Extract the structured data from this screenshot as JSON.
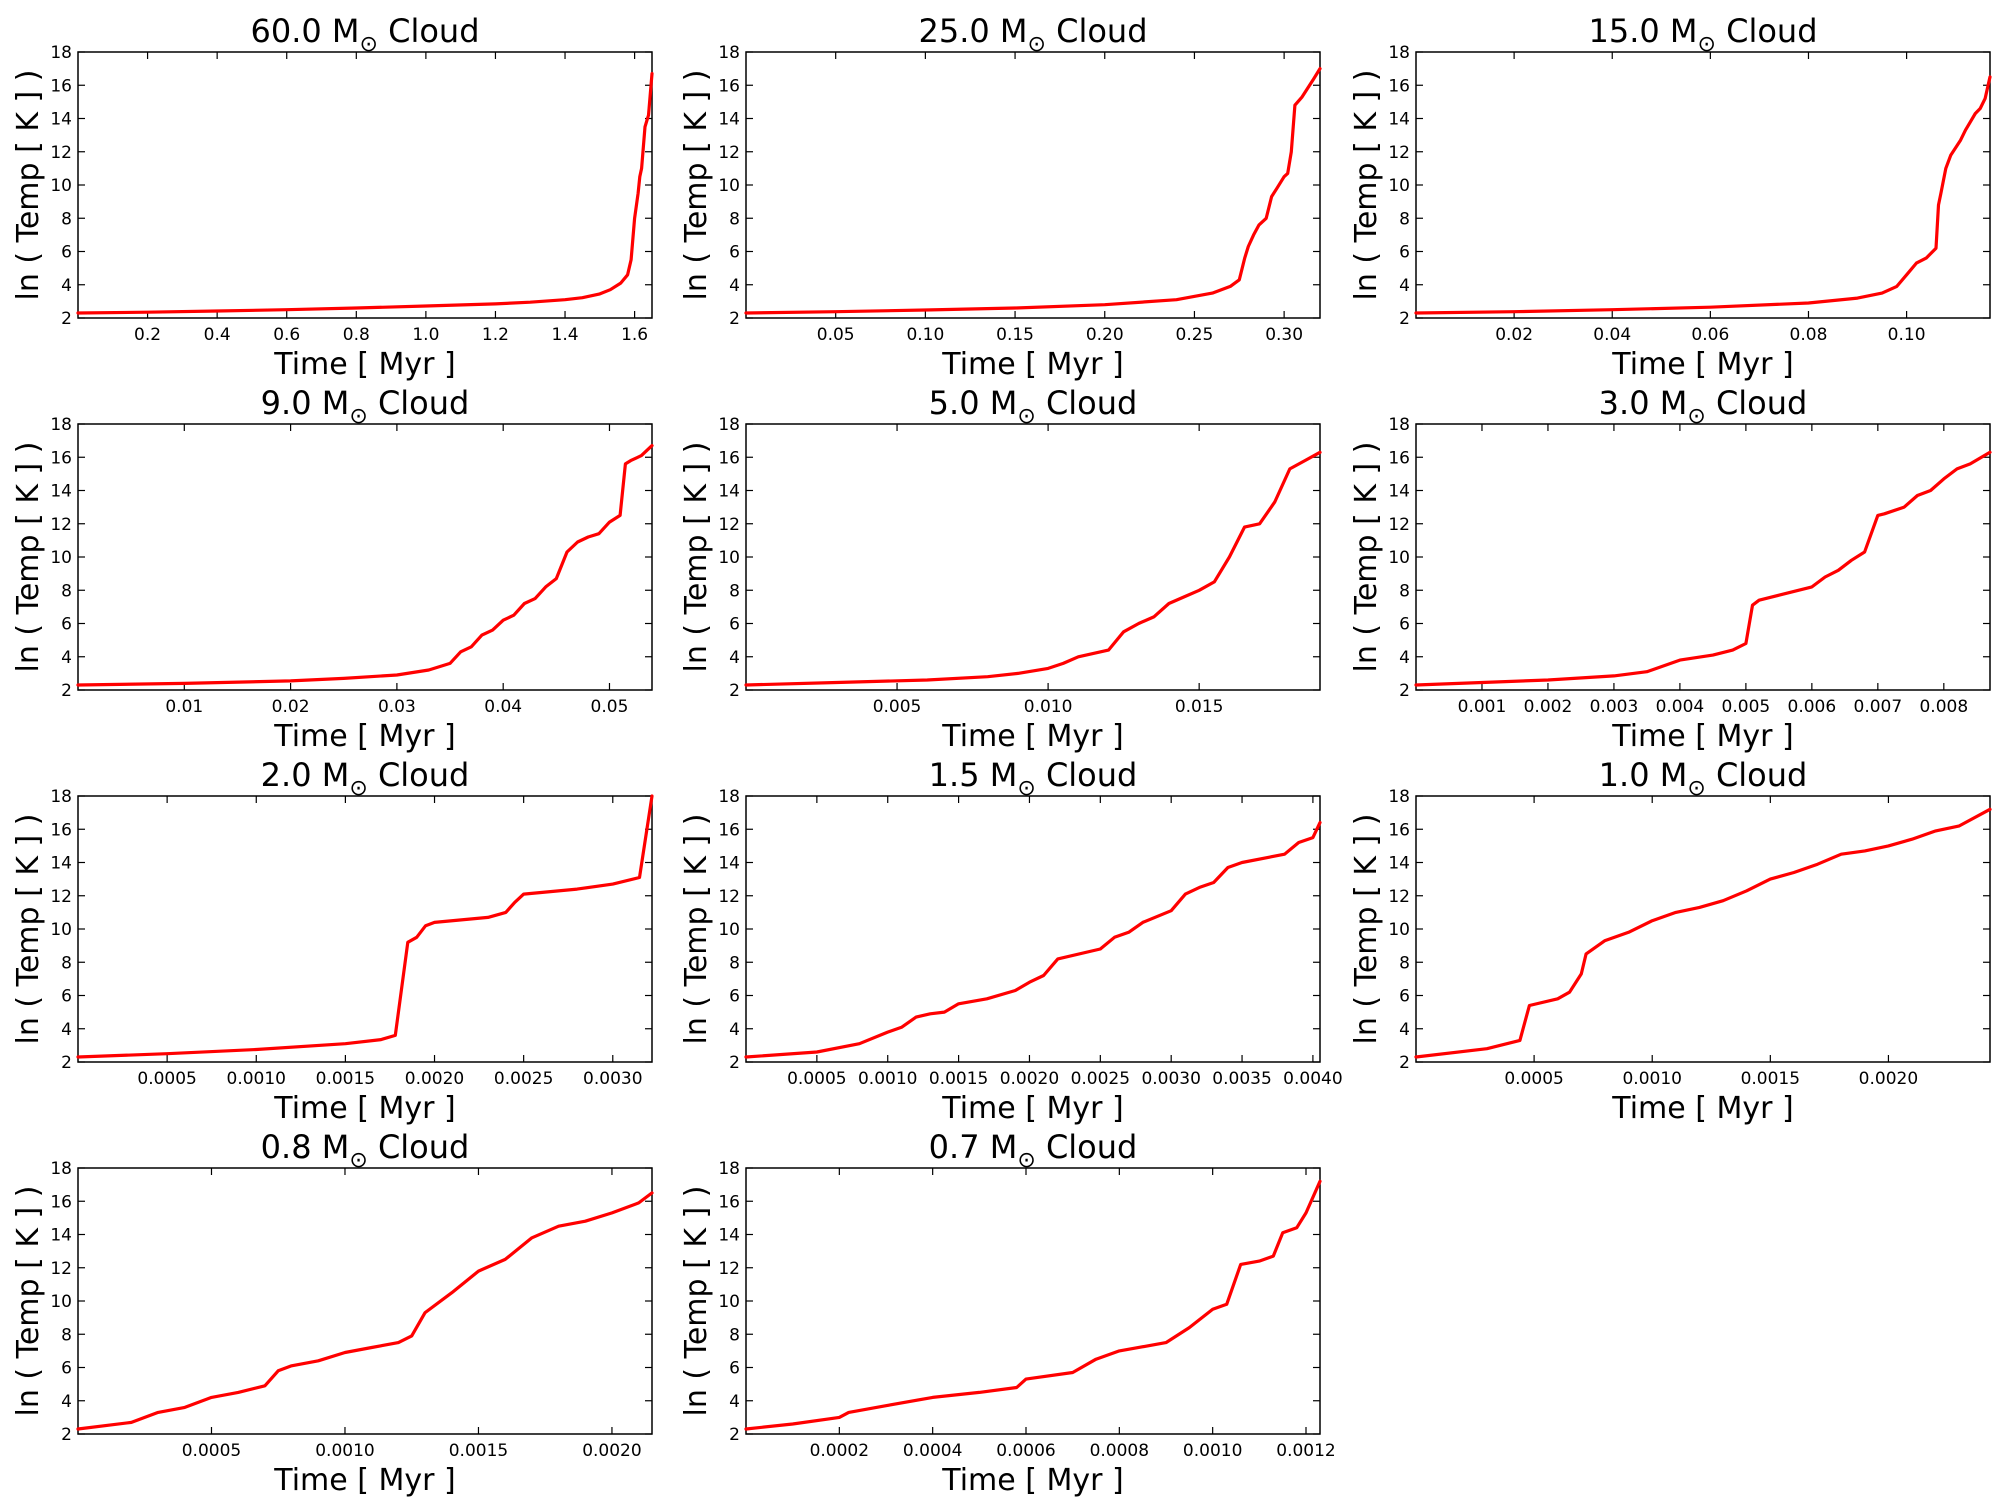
{
  "figure": {
    "line_color": "#ff0000",
    "xlabel": "Time [ Myr ]",
    "ylabel": "ln ( Temp [ K ] )",
    "cloud_word": "Cloud",
    "mass_unit": "M",
    "sun_symbol": "⊙"
  },
  "chart_data": [
    {
      "type": "line",
      "mass": "60.0",
      "xlim": [
        0.0,
        1.65
      ],
      "ylim": [
        2,
        18
      ],
      "xticks": [
        "0.2",
        "0.4",
        "0.6",
        "0.8",
        "1.0",
        "1.2",
        "1.4",
        "1.6"
      ],
      "yticks": [
        "2",
        "4",
        "6",
        "8",
        "10",
        "12",
        "14",
        "16",
        "18"
      ],
      "x": [
        0.0,
        0.2,
        0.4,
        0.6,
        0.8,
        1.0,
        1.2,
        1.3,
        1.4,
        1.45,
        1.5,
        1.53,
        1.56,
        1.58,
        1.59,
        1.6,
        1.61,
        1.615,
        1.62,
        1.63,
        1.64,
        1.65
      ],
      "y": [
        2.3,
        2.35,
        2.42,
        2.5,
        2.6,
        2.72,
        2.85,
        2.95,
        3.1,
        3.22,
        3.45,
        3.7,
        4.1,
        4.6,
        5.5,
        8.0,
        9.5,
        10.5,
        11.0,
        13.5,
        14.2,
        16.7
      ]
    },
    {
      "type": "line",
      "mass": "25.0",
      "xlim": [
        0.0,
        0.32
      ],
      "ylim": [
        2,
        18
      ],
      "xticks": [
        "0.05",
        "0.10",
        "0.15",
        "0.20",
        "0.25",
        "0.30"
      ],
      "yticks": [
        "2",
        "4",
        "6",
        "8",
        "10",
        "12",
        "14",
        "16",
        "18"
      ],
      "x": [
        0.0,
        0.05,
        0.1,
        0.15,
        0.2,
        0.24,
        0.26,
        0.27,
        0.275,
        0.278,
        0.28,
        0.283,
        0.286,
        0.29,
        0.293,
        0.296,
        0.3,
        0.302,
        0.304,
        0.306,
        0.31,
        0.313,
        0.316,
        0.32
      ],
      "y": [
        2.3,
        2.38,
        2.48,
        2.6,
        2.8,
        3.1,
        3.5,
        3.9,
        4.3,
        5.6,
        6.3,
        7.0,
        7.6,
        8.0,
        9.3,
        9.8,
        10.5,
        10.7,
        12.0,
        14.8,
        15.3,
        15.8,
        16.3,
        17.0
      ]
    },
    {
      "type": "line",
      "mass": "15.0",
      "xlim": [
        0.0,
        0.117
      ],
      "ylim": [
        2,
        18
      ],
      "xticks": [
        "0.02",
        "0.04",
        "0.06",
        "0.08",
        "0.10"
      ],
      "yticks": [
        "2",
        "4",
        "6",
        "8",
        "10",
        "12",
        "14",
        "16",
        "18"
      ],
      "x": [
        0.0,
        0.02,
        0.04,
        0.06,
        0.08,
        0.09,
        0.095,
        0.098,
        0.1,
        0.102,
        0.104,
        0.106,
        0.1065,
        0.107,
        0.108,
        0.109,
        0.111,
        0.112,
        0.113,
        0.114,
        0.115,
        0.116,
        0.117
      ],
      "y": [
        2.3,
        2.38,
        2.5,
        2.65,
        2.9,
        3.2,
        3.5,
        3.9,
        4.6,
        5.3,
        5.6,
        6.2,
        8.8,
        9.5,
        11.0,
        11.8,
        12.7,
        13.3,
        13.8,
        14.3,
        14.6,
        15.2,
        16.5
      ]
    },
    {
      "type": "line",
      "mass": "9.0",
      "xlim": [
        0.0,
        0.054
      ],
      "ylim": [
        2,
        18
      ],
      "xticks": [
        "0.01",
        "0.02",
        "0.03",
        "0.04",
        "0.05"
      ],
      "yticks": [
        "2",
        "4",
        "6",
        "8",
        "10",
        "12",
        "14",
        "16",
        "18"
      ],
      "x": [
        0.0,
        0.01,
        0.02,
        0.025,
        0.03,
        0.033,
        0.035,
        0.036,
        0.037,
        0.038,
        0.039,
        0.04,
        0.041,
        0.042,
        0.043,
        0.044,
        0.045,
        0.046,
        0.047,
        0.048,
        0.049,
        0.05,
        0.051,
        0.0515,
        0.052,
        0.053,
        0.054
      ],
      "y": [
        2.3,
        2.4,
        2.55,
        2.7,
        2.9,
        3.2,
        3.6,
        4.3,
        4.6,
        5.3,
        5.6,
        6.2,
        6.5,
        7.2,
        7.5,
        8.2,
        8.7,
        10.3,
        10.9,
        11.2,
        11.4,
        12.1,
        12.5,
        15.6,
        15.8,
        16.1,
        16.7
      ]
    },
    {
      "type": "line",
      "mass": "5.0",
      "xlim": [
        0.0,
        0.019
      ],
      "ylim": [
        2,
        18
      ],
      "xticks": [
        "0.005",
        "0.010",
        "0.015"
      ],
      "yticks": [
        "2",
        "4",
        "6",
        "8",
        "10",
        "12",
        "14",
        "16",
        "18"
      ],
      "x": [
        0.0,
        0.003,
        0.006,
        0.008,
        0.009,
        0.01,
        0.0105,
        0.011,
        0.012,
        0.0125,
        0.013,
        0.0135,
        0.014,
        0.0145,
        0.015,
        0.0155,
        0.016,
        0.0165,
        0.017,
        0.0175,
        0.018,
        0.0185,
        0.019
      ],
      "y": [
        2.3,
        2.45,
        2.6,
        2.8,
        3.0,
        3.3,
        3.6,
        4.0,
        4.4,
        5.5,
        6.0,
        6.4,
        7.2,
        7.6,
        8.0,
        8.5,
        10.0,
        11.8,
        12.0,
        13.3,
        15.3,
        15.8,
        16.3
      ]
    },
    {
      "type": "line",
      "mass": "3.0",
      "xlim": [
        0.0,
        0.0087
      ],
      "ylim": [
        2,
        18
      ],
      "xticks": [
        "0.001",
        "0.002",
        "0.003",
        "0.004",
        "0.005",
        "0.006",
        "0.007",
        "0.008"
      ],
      "yticks": [
        "2",
        "4",
        "6",
        "8",
        "10",
        "12",
        "14",
        "16",
        "18"
      ],
      "x": [
        0.0,
        0.001,
        0.002,
        0.003,
        0.0035,
        0.004,
        0.0045,
        0.0048,
        0.005,
        0.0051,
        0.0052,
        0.0055,
        0.006,
        0.0062,
        0.0064,
        0.0066,
        0.0068,
        0.007,
        0.0071,
        0.0074,
        0.0076,
        0.0078,
        0.008,
        0.0082,
        0.0084,
        0.0087
      ],
      "y": [
        2.3,
        2.45,
        2.6,
        2.85,
        3.1,
        3.8,
        4.1,
        4.4,
        4.8,
        7.1,
        7.4,
        7.7,
        8.2,
        8.8,
        9.2,
        9.8,
        10.3,
        12.5,
        12.6,
        13.0,
        13.7,
        14.0,
        14.7,
        15.3,
        15.6,
        16.3
      ]
    },
    {
      "type": "line",
      "mass": "2.0",
      "xlim": [
        0.0,
        0.00322
      ],
      "ylim": [
        2,
        18
      ],
      "xticks": [
        "0.0005",
        "0.0010",
        "0.0015",
        "0.0020",
        "0.0025",
        "0.0030"
      ],
      "yticks": [
        "2",
        "4",
        "6",
        "8",
        "10",
        "12",
        "14",
        "16",
        "18"
      ],
      "x": [
        0.0,
        0.0005,
        0.001,
        0.0015,
        0.0017,
        0.00178,
        0.00185,
        0.0019,
        0.00195,
        0.002,
        0.0023,
        0.0024,
        0.00245,
        0.0025,
        0.0028,
        0.003,
        0.00315,
        0.00322
      ],
      "y": [
        2.3,
        2.5,
        2.75,
        3.1,
        3.35,
        3.6,
        9.2,
        9.5,
        10.2,
        10.4,
        10.7,
        11.0,
        11.6,
        12.1,
        12.4,
        12.7,
        13.1,
        18.0
      ]
    },
    {
      "type": "line",
      "mass": "1.5",
      "xlim": [
        0.0,
        0.00405
      ],
      "ylim": [
        2,
        18
      ],
      "xticks": [
        "0.0005",
        "0.0010",
        "0.0015",
        "0.0020",
        "0.0025",
        "0.0030",
        "0.0035",
        "0.0040"
      ],
      "yticks": [
        "2",
        "4",
        "6",
        "8",
        "10",
        "12",
        "14",
        "16",
        "18"
      ],
      "x": [
        0.0,
        0.0005,
        0.0008,
        0.001,
        0.0011,
        0.0012,
        0.0013,
        0.0014,
        0.0015,
        0.0017,
        0.0019,
        0.002,
        0.0021,
        0.0022,
        0.0025,
        0.0026,
        0.0027,
        0.0028,
        0.003,
        0.0031,
        0.0032,
        0.0033,
        0.0034,
        0.0035,
        0.0038,
        0.0039,
        0.004,
        0.00405
      ],
      "y": [
        2.3,
        2.6,
        3.1,
        3.8,
        4.1,
        4.7,
        4.9,
        5.0,
        5.5,
        5.8,
        6.3,
        6.8,
        7.2,
        8.2,
        8.8,
        9.5,
        9.8,
        10.4,
        11.1,
        12.1,
        12.5,
        12.8,
        13.7,
        14.0,
        14.5,
        15.2,
        15.5,
        16.4
      ]
    },
    {
      "type": "line",
      "mass": "1.0",
      "xlim": [
        0.0,
        0.00243
      ],
      "ylim": [
        2,
        18
      ],
      "xticks": [
        "0.0005",
        "0.0010",
        "0.0015",
        "0.0020"
      ],
      "yticks": [
        "2",
        "4",
        "6",
        "8",
        "10",
        "12",
        "14",
        "16",
        "18"
      ],
      "x": [
        0.0,
        0.0003,
        0.00044,
        0.00048,
        0.0006,
        0.00065,
        0.0007,
        0.00072,
        0.0008,
        0.0009,
        0.001,
        0.0011,
        0.0012,
        0.0013,
        0.0014,
        0.0015,
        0.0016,
        0.0017,
        0.0018,
        0.0019,
        0.002,
        0.0021,
        0.0022,
        0.0023,
        0.00243
      ],
      "y": [
        2.3,
        2.8,
        3.3,
        5.4,
        5.8,
        6.2,
        7.3,
        8.5,
        9.3,
        9.8,
        10.5,
        11.0,
        11.3,
        11.7,
        12.3,
        13.0,
        13.4,
        13.9,
        14.5,
        14.7,
        15.0,
        15.4,
        15.9,
        16.2,
        17.2
      ]
    },
    {
      "type": "line",
      "mass": "0.8",
      "xlim": [
        0.0,
        0.00215
      ],
      "ylim": [
        2,
        18
      ],
      "xticks": [
        "0.0005",
        "0.0010",
        "0.0015",
        "0.0020"
      ],
      "yticks": [
        "2",
        "4",
        "6",
        "8",
        "10",
        "12",
        "14",
        "16",
        "18"
      ],
      "x": [
        0.0,
        0.0002,
        0.0003,
        0.0004,
        0.0005,
        0.0006,
        0.0007,
        0.00075,
        0.0008,
        0.0009,
        0.001,
        0.0011,
        0.0012,
        0.00125,
        0.0013,
        0.0014,
        0.0015,
        0.0016,
        0.0017,
        0.0018,
        0.0019,
        0.002,
        0.0021,
        0.00215
      ],
      "y": [
        2.3,
        2.7,
        3.3,
        3.6,
        4.2,
        4.5,
        4.9,
        5.8,
        6.1,
        6.4,
        6.9,
        7.2,
        7.5,
        7.9,
        9.3,
        10.5,
        11.8,
        12.5,
        13.8,
        14.5,
        14.8,
        15.3,
        15.9,
        16.5
      ]
    },
    {
      "type": "line",
      "mass": "0.7",
      "xlim": [
        0.0,
        0.00123
      ],
      "ylim": [
        2,
        18
      ],
      "xticks": [
        "0.0002",
        "0.0004",
        "0.0006",
        "0.0008",
        "0.0010",
        "0.0012"
      ],
      "yticks": [
        "2",
        "4",
        "6",
        "8",
        "10",
        "12",
        "14",
        "16",
        "18"
      ],
      "x": [
        0.0,
        0.0001,
        0.0002,
        0.00022,
        0.0003,
        0.0004,
        0.0005,
        0.00058,
        0.0006,
        0.0007,
        0.00075,
        0.0008,
        0.0009,
        0.00095,
        0.001,
        0.00103,
        0.00106,
        0.0011,
        0.00113,
        0.00115,
        0.00118,
        0.0012,
        0.00123
      ],
      "y": [
        2.3,
        2.6,
        3.0,
        3.3,
        3.7,
        4.2,
        4.5,
        4.8,
        5.3,
        5.7,
        6.5,
        7.0,
        7.5,
        8.4,
        9.5,
        9.8,
        12.2,
        12.4,
        12.7,
        14.1,
        14.4,
        15.3,
        17.2
      ]
    }
  ]
}
